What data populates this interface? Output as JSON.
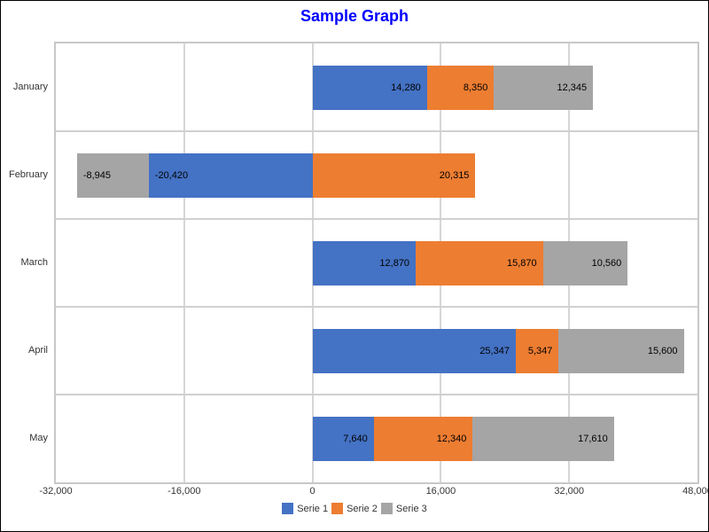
{
  "window": {
    "background": "#ffffff",
    "border_color": "#000000"
  },
  "chart_data": {
    "type": "bar",
    "orientation": "horizontal",
    "stacked": true,
    "title": "Sample Graph",
    "title_color": "#0000ff",
    "categories": [
      "January",
      "February",
      "March",
      "April",
      "May"
    ],
    "series": [
      {
        "name": "Serie 1",
        "color": "#4472c4",
        "values": [
          14280,
          -20420,
          12870,
          25347,
          7640
        ],
        "labels": [
          "14,280",
          "-20,420",
          "12,870",
          "25,347",
          "7,640"
        ]
      },
      {
        "name": "Serie 2",
        "color": "#ed7d31",
        "values": [
          8350,
          20315,
          15870,
          5347,
          12340
        ],
        "labels": [
          "8,350",
          "20,315",
          "15,870",
          "5,347",
          "12,340"
        ]
      },
      {
        "name": "Serie 3",
        "color": "#a5a5a5",
        "values": [
          12345,
          -8945,
          10560,
          15600,
          17610
        ],
        "labels": [
          "12,345",
          "-8,945",
          "10,560",
          "15,600",
          "17,610"
        ]
      }
    ],
    "x_axis": {
      "min": -32000,
      "max": 48000,
      "tick_interval": 16000,
      "tick_labels": [
        "-32,000",
        "-16,000",
        "0",
        "16,000",
        "32,000",
        "48,000"
      ]
    },
    "legend": {
      "position": "bottom",
      "entries": [
        "Serie 1",
        "Serie 2",
        "Serie 3"
      ]
    },
    "grid": {
      "line_color": "#d6d6d6",
      "separator_color": "#d0d0d0",
      "border_color": "#c8c8c8"
    },
    "data_label_color": "#000000",
    "axis_text_color": "#333333"
  }
}
